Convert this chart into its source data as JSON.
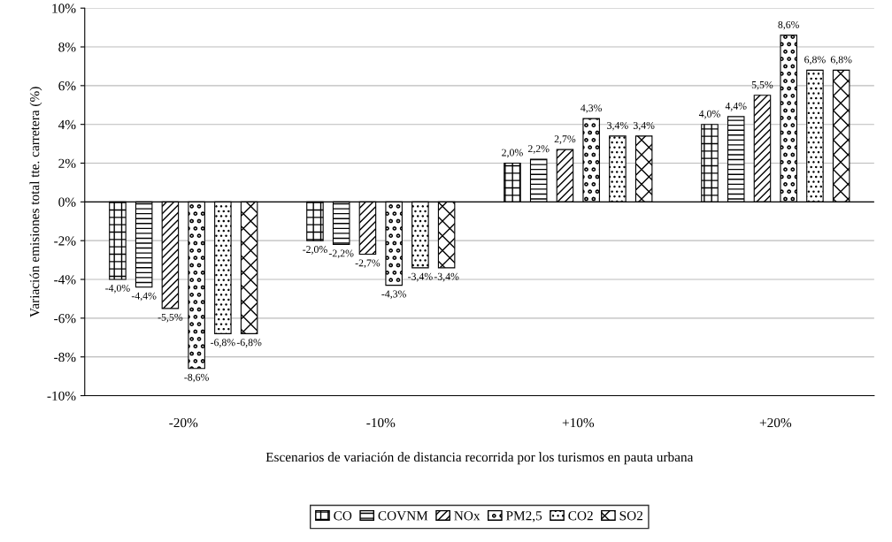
{
  "chart_data": {
    "type": "bar",
    "xlabel": "Escenarios de variación de distancia recorrida por los turismos en pauta urbana",
    "ylabel": "Variación emisiones total tte. carretera (%)",
    "categories": [
      "-20%",
      "-10%",
      "+10%",
      "+20%"
    ],
    "series": [
      {
        "name": "CO",
        "color": "#000000",
        "values": [
          -4.0,
          -2.0,
          2.0,
          4.0
        ],
        "value_labels": [
          "-4,0%",
          "-2,0%",
          "2,0%",
          "4,0%"
        ]
      },
      {
        "name": "COVNM",
        "color": "#000000",
        "values": [
          -4.4,
          -2.2,
          2.2,
          4.4
        ],
        "value_labels": [
          "-4,4%",
          "-2,2%",
          "2,2%",
          "4,4%"
        ]
      },
      {
        "name": "NOx",
        "color": "#000000",
        "values": [
          -5.5,
          -2.7,
          2.7,
          5.5
        ],
        "value_labels": [
          "-5,5%",
          "-2,7%",
          "2,7%",
          "5,5%"
        ]
      },
      {
        "name": "PM2,5",
        "color": "#000000",
        "values": [
          -8.6,
          -4.3,
          4.3,
          8.6
        ],
        "value_labels": [
          "-8,6%",
          "-4,3%",
          "4,3%",
          "8,6%"
        ]
      },
      {
        "name": "CO2",
        "color": "#000000",
        "values": [
          -6.8,
          -3.4,
          3.4,
          6.8
        ],
        "value_labels": [
          "-6,8%",
          "-3,4%",
          "3,4%",
          "6,8%"
        ]
      },
      {
        "name": "SO2",
        "color": "#000000",
        "values": [
          -6.8,
          -3.4,
          3.4,
          6.8
        ],
        "value_labels": [
          "-6,8%",
          "-3,4%",
          "3,4%",
          "6,8%"
        ]
      }
    ],
    "ylim": [
      -10,
      10
    ],
    "yticks": [
      {
        "value": -10,
        "label": "-10%"
      },
      {
        "value": -8,
        "label": "-8%"
      },
      {
        "value": -6,
        "label": "-6%"
      },
      {
        "value": -4,
        "label": "-4%"
      },
      {
        "value": -2,
        "label": "-2%"
      },
      {
        "value": 0,
        "label": "0%"
      },
      {
        "value": 2,
        "label": "2%"
      },
      {
        "value": 4,
        "label": "4%"
      },
      {
        "value": 6,
        "label": "6%"
      },
      {
        "value": 8,
        "label": "8%"
      },
      {
        "value": 10,
        "label": "10%"
      }
    ],
    "grid": "y",
    "legend": "bottom"
  }
}
